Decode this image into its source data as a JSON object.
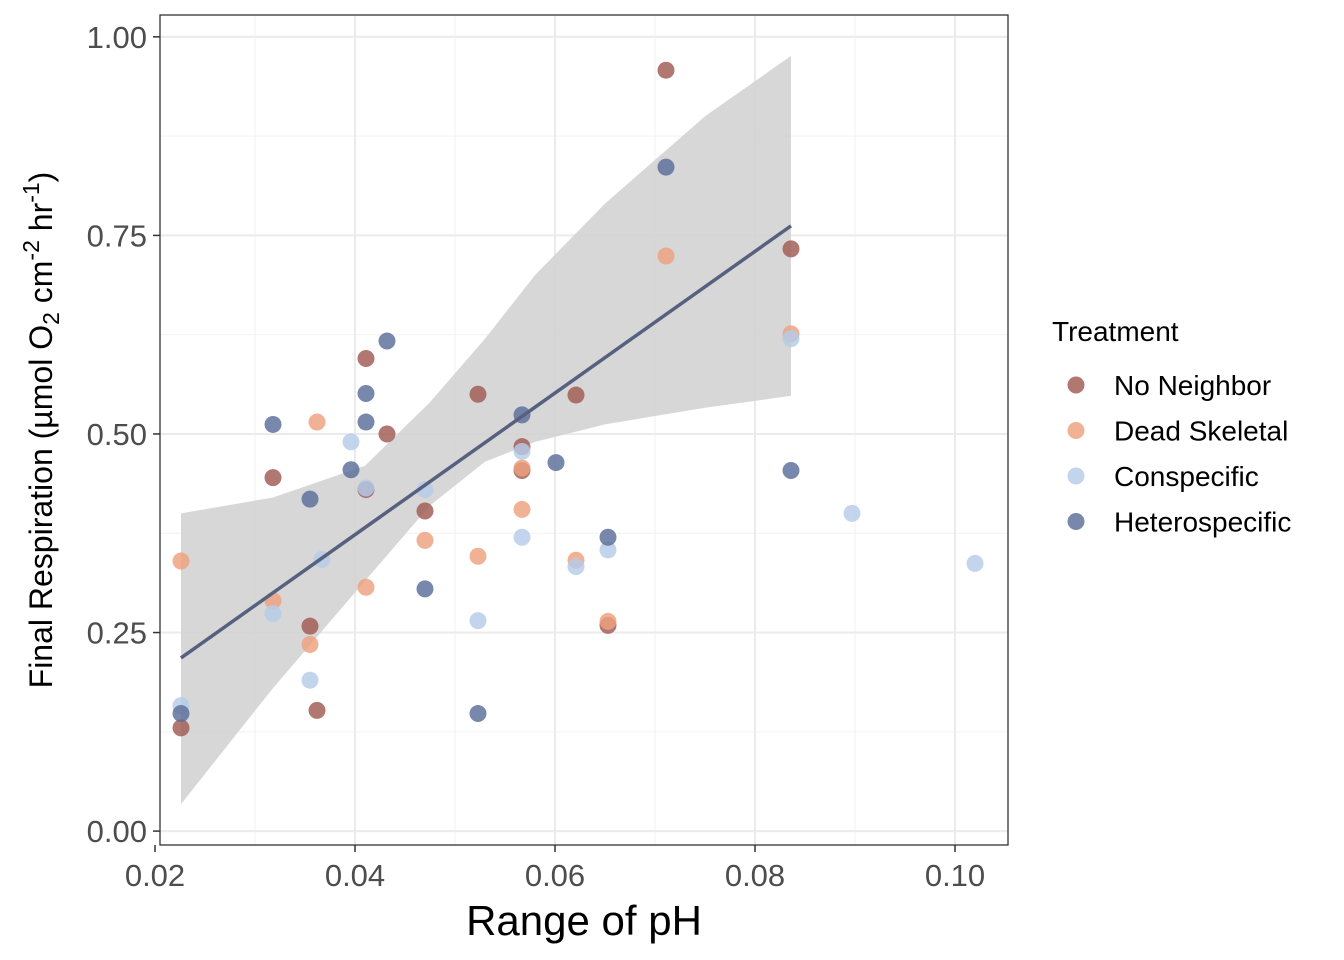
{
  "chart_data": {
    "type": "scatter",
    "title": "",
    "xlabel": "Range of pH",
    "ylabel_parts": {
      "prefix": "Final Respiration (µmol O",
      "sub": "2",
      "mid1": " cm",
      "sup1": "-2",
      "mid2": " hr",
      "sup2": "-1",
      "suffix": ")"
    },
    "xlim": [
      0.0205,
      0.1053
    ],
    "ylim": [
      -0.0175,
      1.0275
    ],
    "x_ticks": [
      0.02,
      0.04,
      0.06,
      0.08,
      0.1
    ],
    "x_tick_labels": [
      "0.02",
      "0.04",
      "0.06",
      "0.08",
      "0.10"
    ],
    "y_ticks": [
      0.0,
      0.25,
      0.5,
      0.75,
      1.0
    ],
    "y_tick_labels": [
      "0.00",
      "0.25",
      "0.50",
      "0.75",
      "1.00"
    ],
    "grid": true,
    "legend": {
      "title": "Treatment",
      "position": "right",
      "entries": [
        "No Neighbor",
        "Dead Skeletal",
        "Conspecific",
        "Heterospecific"
      ]
    },
    "colors": {
      "No Neighbor": "#a05a52",
      "Dead Skeletal": "#eea07e",
      "Conspecific": "#b4cce9",
      "Heterospecific": "#5a6e9a",
      "fit_line": "#56607f",
      "ribbon": "#d3d3d3"
    },
    "series": [
      {
        "name": "No Neighbor",
        "x": [
          0.0226,
          0.0318,
          0.0355,
          0.0362,
          0.0411,
          0.0411,
          0.0432,
          0.047,
          0.0523,
          0.0567,
          0.0567,
          0.0621,
          0.0653,
          0.0711,
          0.0836
        ],
        "y": [
          0.13,
          0.445,
          0.258,
          0.152,
          0.595,
          0.43,
          0.5,
          0.403,
          0.55,
          0.484,
          0.454,
          0.549,
          0.259,
          0.958,
          0.733
        ]
      },
      {
        "name": "Dead Skeletal",
        "x": [
          0.0226,
          0.0318,
          0.0355,
          0.0362,
          0.0411,
          0.047,
          0.0523,
          0.0567,
          0.0567,
          0.0621,
          0.0653,
          0.0711,
          0.0836
        ],
        "y": [
          0.34,
          0.29,
          0.235,
          0.515,
          0.307,
          0.366,
          0.346,
          0.405,
          0.457,
          0.341,
          0.264,
          0.724,
          0.626
        ]
      },
      {
        "name": "Conspecific",
        "x": [
          0.0226,
          0.0318,
          0.0355,
          0.0367,
          0.0396,
          0.0411,
          0.047,
          0.0523,
          0.0567,
          0.0567,
          0.0621,
          0.0653,
          0.0836,
          0.0897,
          0.102
        ],
        "y": [
          0.158,
          0.274,
          0.19,
          0.342,
          0.49,
          0.432,
          0.43,
          0.265,
          0.37,
          0.478,
          0.333,
          0.354,
          0.62,
          0.4,
          0.337
        ]
      },
      {
        "name": "Heterospecific",
        "x": [
          0.0226,
          0.0318,
          0.0355,
          0.0396,
          0.0411,
          0.0411,
          0.0432,
          0.047,
          0.0523,
          0.0567,
          0.0601,
          0.0653,
          0.0711,
          0.0836
        ],
        "y": [
          0.148,
          0.512,
          0.418,
          0.455,
          0.551,
          0.515,
          0.617,
          0.305,
          0.148,
          0.524,
          0.464,
          0.37,
          0.836,
          0.454
        ]
      }
    ],
    "fit": {
      "x": [
        0.0226,
        0.0836
      ],
      "y": [
        0.218,
        0.762
      ],
      "ribbon": {
        "x": [
          0.0226,
          0.0318,
          0.041,
          0.0475,
          0.053,
          0.058,
          0.065,
          0.075,
          0.0836
        ],
        "lower": [
          0.034,
          0.18,
          0.315,
          0.41,
          0.465,
          0.49,
          0.512,
          0.533,
          0.548
        ],
        "upper": [
          0.4,
          0.42,
          0.46,
          0.54,
          0.62,
          0.7,
          0.79,
          0.9,
          0.976
        ]
      }
    }
  }
}
